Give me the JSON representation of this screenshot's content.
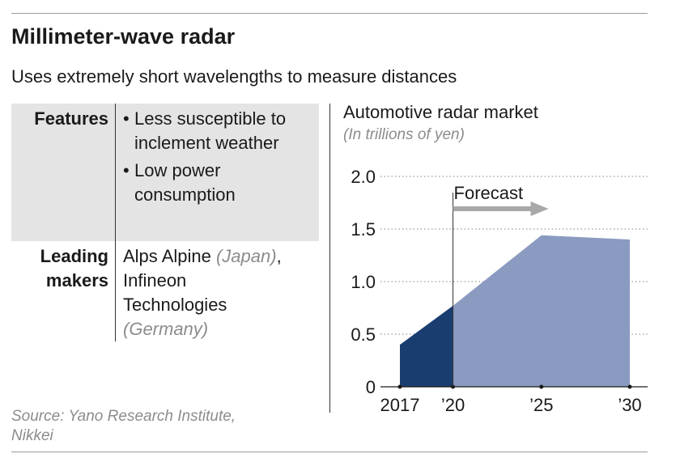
{
  "header": {
    "title": "Millimeter-wave radar",
    "subtitle": "Uses extremely short wavelengths to measure distances"
  },
  "table": {
    "features_label": "Features",
    "features": [
      {
        "bullet": "•",
        "text": "Less susceptible to inclement weather"
      },
      {
        "bullet": "•",
        "text": "Low power consumption"
      }
    ],
    "makers_label_line1": "Leading",
    "makers_label_line2": "makers",
    "makers": {
      "alps": "Alps Alpine",
      "alps_country": "(Japan)",
      "comma": ",",
      "infineon_line1": "Infineon",
      "infineon_line2": "Technologies",
      "infineon_country": "(Germany)"
    }
  },
  "source": "Source: Yano Research Institute, Nikkei",
  "chart_data": {
    "type": "area",
    "title": "Automotive radar market",
    "ylabel": "(In trillions of yen)",
    "x": [
      2017,
      2020,
      2025,
      2030
    ],
    "x_tick_labels": [
      "2017",
      "’20",
      "’25",
      "’30"
    ],
    "series": [
      {
        "values": [
          0.4,
          0.77,
          1.44,
          1.4
        ]
      }
    ],
    "actual_through": 2020,
    "forecast_label": "Forecast",
    "ylim": [
      0,
      2.0
    ],
    "y_ticks": [
      0,
      0.5,
      1.0,
      1.5,
      2.0
    ],
    "y_tick_labels": [
      "0",
      "0.5",
      "1.0",
      "1.5",
      "2.0"
    ],
    "grid": "dotted horizontal",
    "colors": {
      "actual": "#1a3d70",
      "forecast": "#8a9ac0",
      "arrow": "#a8a8a8"
    }
  }
}
